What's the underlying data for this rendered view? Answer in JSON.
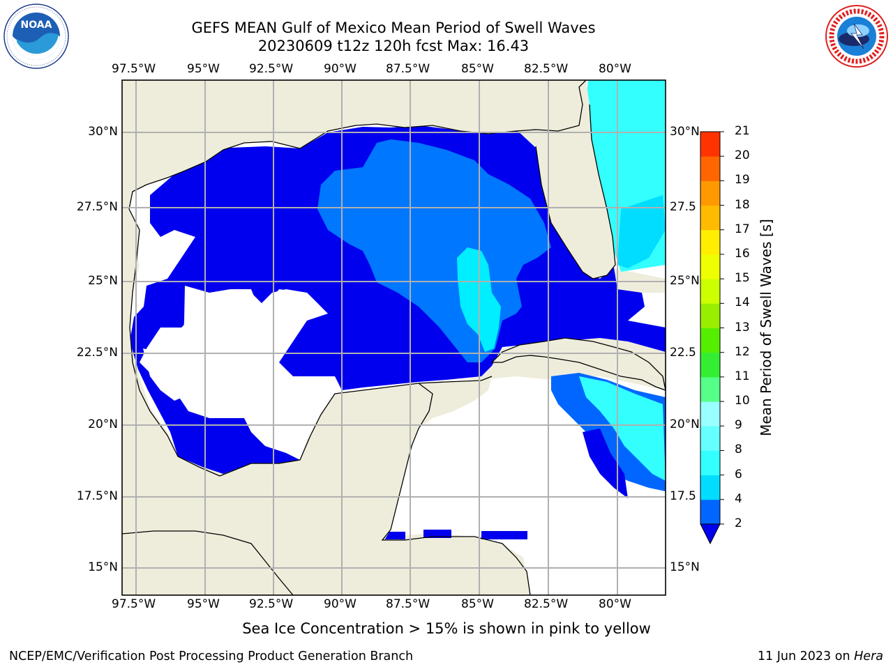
{
  "title_line1": "GEFS MEAN Gulf of Mexico Mean Period of Swell Waves",
  "title_line2": "20230609 t12z 120h fcst   Max: 16.43",
  "lon_labels": [
    "97.5°W",
    "95°W",
    "92.5°W",
    "90°W",
    "87.5°W",
    "85°W",
    "82.5°W",
    "80°W"
  ],
  "lat_labels_left": [
    "30°N",
    "27.5°N",
    "25°N",
    "22.5°N",
    "20°N",
    "17.5°N",
    "15°N"
  ],
  "lat_labels_right": [
    "30°N",
    "27.5",
    "25°N",
    "22.5",
    "20°N",
    "17.5",
    "15°N"
  ],
  "colorbar": {
    "label": "Mean Period of Swell Waves [s]",
    "ticks": [
      "2",
      "4",
      "6",
      "8",
      "9",
      "10",
      "11",
      "12",
      "13",
      "14",
      "15",
      "16",
      "17",
      "18",
      "19",
      "20",
      "21"
    ],
    "colors": [
      "#0066ff",
      "#00ddff",
      "#33ffff",
      "#66ffff",
      "#99ffff",
      "#55ff88",
      "#33ee33",
      "#55ee00",
      "#99ee00",
      "#ccff00",
      "#eeff00",
      "#ffee00",
      "#ffbb00",
      "#ff9900",
      "#ff6600",
      "#ff3300",
      "#ff0000"
    ],
    "under_color": "#0000ee"
  },
  "colors": {
    "land": "#eeeddc",
    "ocean_nodata": "#ffffff",
    "dark_blue": "#0000ee",
    "medium_blue": "#0077ff",
    "cyan": "#00eeff",
    "light_cyan": "#55ffff",
    "yellow_green": "#ddff22",
    "grid": "#b0b0b0"
  },
  "ice_note": "Sea Ice Concentration > 15% is shown in pink to yellow",
  "footer_left": "NCEP/EMC/Verification Post Processing Product Generation Branch",
  "footer_date": "11 Jun 2023 on",
  "footer_machine": "Hera",
  "logos": {
    "left": "NOAA",
    "right": "NATIONAL WEATHER SERVICE"
  }
}
